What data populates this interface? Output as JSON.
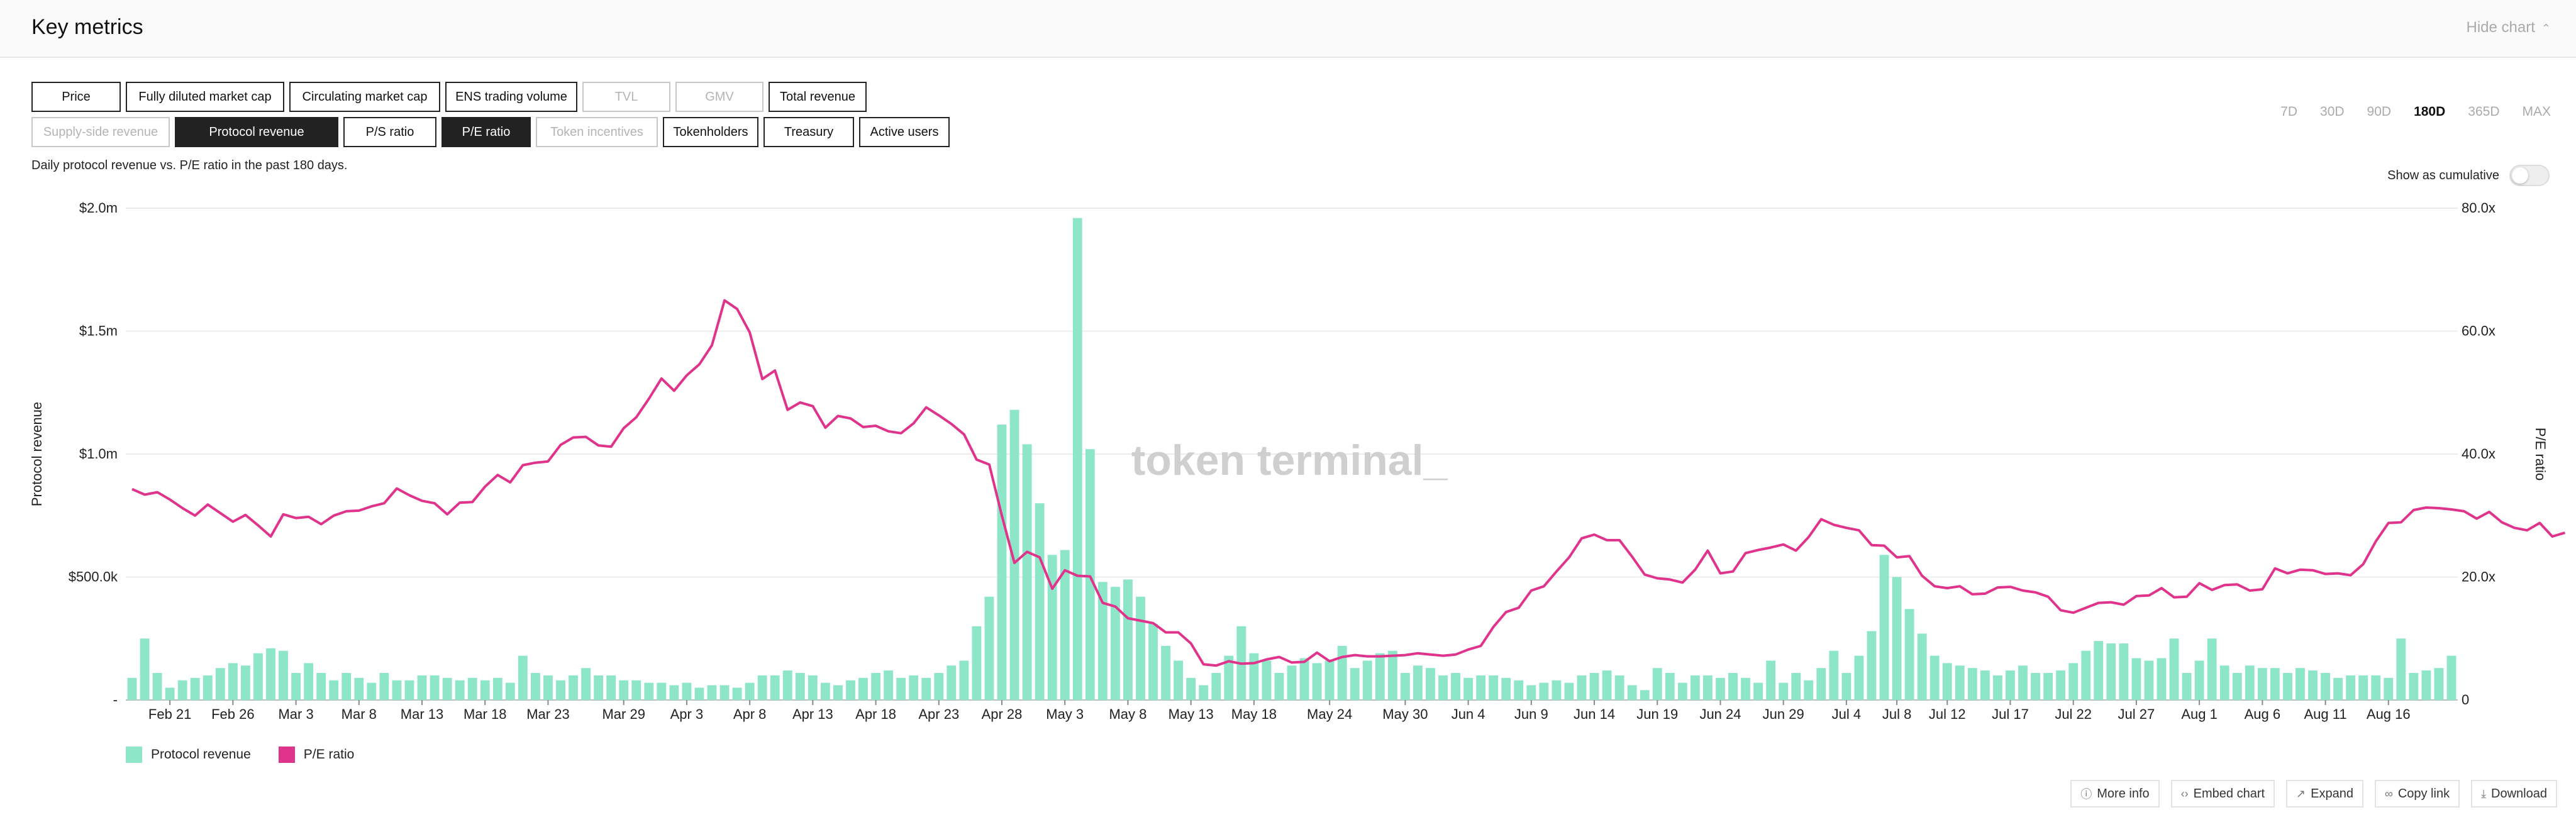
{
  "header": {
    "title": "Key metrics",
    "hide_chart_label": "Hide chart"
  },
  "metric_buttons": [
    [
      {
        "label": "Price",
        "state": "normal"
      },
      {
        "label": "Fully diluted market cap",
        "state": "normal"
      },
      {
        "label": "Circulating market cap",
        "state": "normal"
      },
      {
        "label": "ENS trading volume",
        "state": "normal"
      },
      {
        "label": "TVL",
        "state": "disabled"
      },
      {
        "label": "GMV",
        "state": "disabled"
      },
      {
        "label": "Total revenue",
        "state": "normal"
      }
    ],
    [
      {
        "label": "Supply-side revenue",
        "state": "disabled"
      },
      {
        "label": "Protocol revenue",
        "state": "active"
      },
      {
        "label": "P/S ratio",
        "state": "normal"
      },
      {
        "label": "P/E ratio",
        "state": "active"
      },
      {
        "label": "Token incentives",
        "state": "disabled"
      },
      {
        "label": "Tokenholders",
        "state": "normal"
      },
      {
        "label": "Treasury",
        "state": "normal"
      },
      {
        "label": "Active users",
        "state": "normal"
      }
    ]
  ],
  "time_ranges": [
    {
      "label": "7D",
      "active": false
    },
    {
      "label": "30D",
      "active": false
    },
    {
      "label": "90D",
      "active": false
    },
    {
      "label": "180D",
      "active": true
    },
    {
      "label": "365D",
      "active": false
    },
    {
      "label": "MAX",
      "active": false
    }
  ],
  "subtitle": "Daily protocol revenue vs. P/E ratio in the past 180 days.",
  "cumulative": {
    "label": "Show as cumulative",
    "on": false
  },
  "watermark": "token terminal_",
  "legend": [
    {
      "label": "Protocol revenue",
      "color": "#8ee6c8"
    },
    {
      "label": "P/E ratio",
      "color": "#e0338c"
    }
  ],
  "footer_buttons": [
    {
      "label": "More info",
      "icon": "info-icon"
    },
    {
      "label": "Embed chart",
      "icon": "code-icon"
    },
    {
      "label": "Expand",
      "icon": "expand-icon"
    },
    {
      "label": "Copy link",
      "icon": "link-icon"
    },
    {
      "label": "Download",
      "icon": "download-icon"
    }
  ],
  "chart_data": {
    "type": "bar+line",
    "title": "",
    "ylabel": "Protocol revenue",
    "y2label": "P/E ratio",
    "ylim": [
      0,
      2000000
    ],
    "y2lim": [
      0,
      80
    ],
    "y_ticks": [
      "-",
      "$500.0k",
      "$1.0m",
      "$1.5m",
      "$2.0m"
    ],
    "y2_ticks": [
      "0",
      "20.0x",
      "40.0x",
      "60.0x",
      "80.0x"
    ],
    "x_tick_labels": [
      "Feb 21",
      "Feb 26",
      "Mar 3",
      "Mar 8",
      "Mar 13",
      "Mar 18",
      "Mar 23",
      "Mar 29",
      "Apr 3",
      "Apr 8",
      "Apr 13",
      "Apr 18",
      "Apr 23",
      "Apr 28",
      "May 3",
      "May 8",
      "May 13",
      "May 18",
      "May 24",
      "May 30",
      "Jun 4",
      "Jun 9",
      "Jun 14",
      "Jun 19",
      "Jun 24",
      "Jun 29",
      "Jul 4",
      "Jul 8",
      "Jul 12",
      "Jul 17",
      "Jul 22",
      "Jul 27",
      "Aug 1",
      "Aug 6",
      "Aug 11",
      "Aug 16"
    ],
    "x_tick_index": [
      3,
      8,
      13,
      18,
      23,
      28,
      33,
      39,
      44,
      49,
      54,
      59,
      64,
      69,
      74,
      79,
      84,
      89,
      95,
      101,
      106,
      111,
      116,
      121,
      126,
      131,
      136,
      140,
      144,
      149,
      154,
      159,
      164,
      169,
      174,
      179
    ],
    "grid": true,
    "legend_position": "bottom-left",
    "series": [
      {
        "name": "Protocol revenue",
        "type": "bar",
        "color": "#8ee6c8",
        "values": [
          90000,
          250000,
          110000,
          50000,
          80000,
          90000,
          100000,
          130000,
          150000,
          140000,
          190000,
          210000,
          200000,
          110000,
          150000,
          110000,
          80000,
          110000,
          90000,
          70000,
          110000,
          80000,
          80000,
          100000,
          100000,
          90000,
          80000,
          90000,
          80000,
          90000,
          70000,
          180000,
          110000,
          100000,
          80000,
          100000,
          130000,
          100000,
          100000,
          80000,
          80000,
          70000,
          70000,
          60000,
          70000,
          50000,
          60000,
          60000,
          50000,
          70000,
          100000,
          100000,
          120000,
          110000,
          100000,
          70000,
          60000,
          80000,
          90000,
          110000,
          120000,
          90000,
          100000,
          90000,
          110000,
          140000,
          160000,
          300000,
          420000,
          1120000,
          1180000,
          1040000,
          800000,
          590000,
          610000,
          1960000,
          1020000,
          480000,
          460000,
          490000,
          420000,
          310000,
          220000,
          160000,
          90000,
          60000,
          110000,
          180000,
          300000,
          190000,
          160000,
          110000,
          140000,
          170000,
          150000,
          160000,
          220000,
          130000,
          160000,
          190000,
          200000,
          110000,
          140000,
          130000,
          100000,
          110000,
          90000,
          100000,
          100000,
          90000,
          80000,
          60000,
          70000,
          80000,
          70000,
          100000,
          110000,
          120000,
          100000,
          60000,
          40000,
          130000,
          110000,
          70000,
          100000,
          100000,
          90000,
          110000,
          90000,
          70000,
          160000,
          70000,
          110000,
          80000,
          130000,
          200000,
          110000,
          180000,
          280000,
          590000,
          500000,
          370000,
          270000,
          180000,
          150000,
          140000,
          130000,
          120000,
          100000,
          120000,
          140000,
          110000,
          110000,
          120000,
          150000,
          200000,
          240000,
          230000,
          230000,
          170000,
          160000,
          170000,
          250000,
          110000,
          160000,
          250000,
          140000,
          110000,
          140000,
          130000,
          130000,
          110000,
          130000,
          120000,
          110000,
          90000,
          100000,
          100000,
          100000,
          90000,
          250000,
          110000,
          120000,
          130000,
          180000
        ]
      },
      {
        "name": "P/E ratio",
        "type": "line",
        "color": "#e0338c",
        "values": [
          34.3,
          33.4,
          33.8,
          32.6,
          31.2,
          30.0,
          31.8,
          30.4,
          29.0,
          30.1,
          28.4,
          26.6,
          30.2,
          29.6,
          29.8,
          28.6,
          30.0,
          30.7,
          30.8,
          31.5,
          32.0,
          34.4,
          33.3,
          32.4,
          32.0,
          30.2,
          32.1,
          32.2,
          34.7,
          36.6,
          35.4,
          38.2,
          38.6,
          38.8,
          41.5,
          42.7,
          42.8,
          41.4,
          41.2,
          44.2,
          46.0,
          49.0,
          52.3,
          50.3,
          52.8,
          54.6,
          57.7,
          65.0,
          63.6,
          59.8,
          52.2,
          53.6,
          47.2,
          48.4,
          47.8,
          44.3,
          46.2,
          45.8,
          44.4,
          44.6,
          43.7,
          43.4,
          45.0,
          47.6,
          46.3,
          44.9,
          43.2,
          39.1,
          38.3,
          30.0,
          22.3,
          24.1,
          23.2,
          18.1,
          21.1,
          20.2,
          20.1,
          15.8,
          15.2,
          13.3,
          12.9,
          12.5,
          11.0,
          11.0,
          9.2,
          5.8,
          5.6,
          6.3,
          5.9,
          6.0,
          6.6,
          7.0,
          6.1,
          6.2,
          7.7,
          6.3,
          7.0,
          7.3,
          7.1,
          7.1,
          7.2,
          7.3,
          7.6,
          7.4,
          7.2,
          7.4,
          8.2,
          8.8,
          11.9,
          14.3,
          15.0,
          17.8,
          18.5,
          20.9,
          23.2,
          26.3,
          26.9,
          26.0,
          26.0,
          23.3,
          20.4,
          19.8,
          19.6,
          19.1,
          21.2,
          24.3,
          20.6,
          20.9,
          23.9,
          24.4,
          24.8,
          25.3,
          24.3,
          26.5,
          29.4,
          28.5,
          28.0,
          27.6,
          25.2,
          25.1,
          23.2,
          23.4,
          20.2,
          18.5,
          18.2,
          18.5,
          17.2,
          17.3,
          18.3,
          18.4,
          17.8,
          17.5,
          16.8,
          14.6,
          14.2,
          15.0,
          15.8,
          15.9,
          15.5,
          16.9,
          17.0,
          18.2,
          16.7,
          16.8,
          19.0,
          17.9,
          18.7,
          18.8,
          17.8,
          18.0,
          21.4,
          20.6,
          21.2,
          21.1,
          20.5,
          20.6,
          20.3,
          22.1,
          25.8,
          28.8,
          28.9,
          30.9,
          31.3,
          31.2,
          31.0,
          30.7,
          29.5,
          30.6,
          28.9,
          28.0,
          27.6,
          28.8,
          26.6,
          27.2
        ]
      }
    ]
  }
}
